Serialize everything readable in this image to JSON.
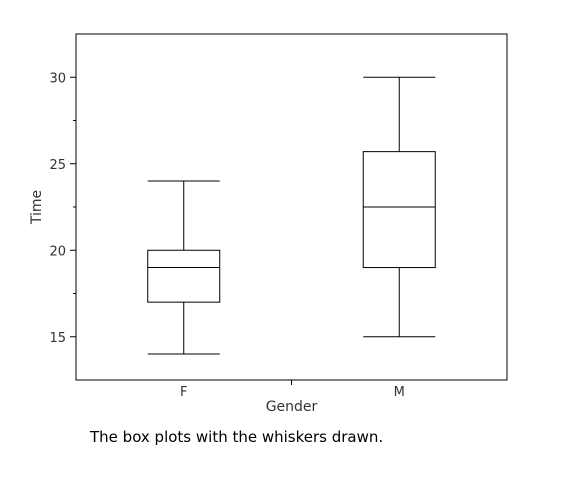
{
  "chart_data": {
    "type": "boxplot",
    "xlabel": "Gender",
    "ylabel": "Time",
    "categories": [
      "F",
      "M"
    ],
    "boxes": [
      {
        "category": "F",
        "min": 14,
        "q1": 17,
        "median": 19,
        "q3": 20,
        "max": 24
      },
      {
        "category": "M",
        "min": 15,
        "q1": 19,
        "median": 22.5,
        "q3": 25.7,
        "max": 30
      }
    ],
    "ylim": [
      12.5,
      32.5
    ],
    "yticks_major": [
      15,
      20,
      25,
      30
    ],
    "yticks_minor": [
      17.5,
      22.5,
      27.5
    ],
    "yticks_major_labels": [
      "15",
      "20",
      "25",
      "30"
    ],
    "grid": false,
    "legend": "none"
  },
  "caption": "The box plots with the whiskers drawn.",
  "colors": {
    "stroke": "#000000",
    "background": "#ffffff",
    "text": "#333333"
  }
}
